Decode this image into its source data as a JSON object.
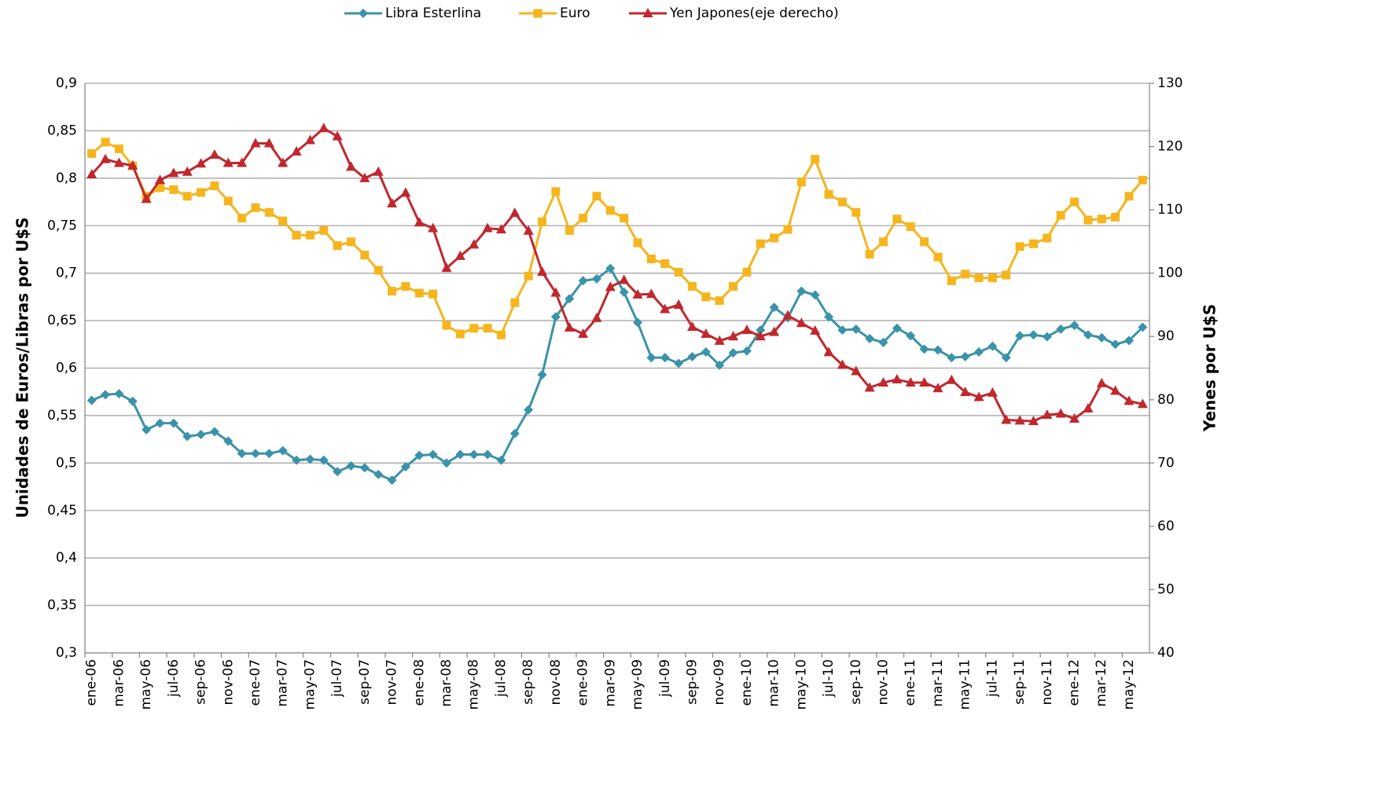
{
  "chart_data": {
    "type": "line",
    "categories": [
      "ene-06",
      null,
      "mar-06",
      null,
      "may-06",
      null,
      "jul-06",
      null,
      "sep-06",
      null,
      "nov-06",
      null,
      "ene-07",
      null,
      "mar-07",
      null,
      "may-07",
      null,
      "jul-07",
      null,
      "sep-07",
      null,
      "nov-07",
      null,
      "ene-08",
      null,
      "mar-08",
      null,
      "may-08",
      null,
      "jul-08",
      null,
      "sep-08",
      null,
      "nov-08",
      null,
      "ene-09",
      null,
      "mar-09",
      null,
      "may-09",
      null,
      "jul-09",
      null,
      "sep-09",
      null,
      "nov-09",
      null,
      "ene-10",
      null,
      "mar-10",
      null,
      "may-10",
      null,
      "jul-10",
      null,
      "sep-10",
      null,
      "nov-10",
      null,
      "ene-11",
      null,
      "mar-11",
      null,
      "may-11",
      null,
      "jul-11",
      null,
      "sep-11",
      null,
      "nov-11",
      null,
      "ene-12",
      null,
      "mar-12",
      null,
      "may-12",
      null
    ],
    "series": [
      {
        "name": "Libra Esterlina",
        "color": "#3a93a8",
        "marker": "diamond",
        "values": [
          0.566,
          0.572,
          0.573,
          0.565,
          0.535,
          0.542,
          0.542,
          0.528,
          0.53,
          0.533,
          0.523,
          0.51,
          0.51,
          0.51,
          0.513,
          0.503,
          0.504,
          0.503,
          0.491,
          0.497,
          0.495,
          0.488,
          0.482,
          0.496,
          0.508,
          0.509,
          0.5,
          0.509,
          0.509,
          0.509,
          0.503,
          0.531,
          0.556,
          0.593,
          0.654,
          0.673,
          0.692,
          0.694,
          0.705,
          0.68,
          0.648,
          0.611,
          0.611,
          0.605,
          0.612,
          0.617,
          0.603,
          0.616,
          0.618,
          0.64,
          0.664,
          0.653,
          0.681,
          0.677,
          0.654,
          0.64,
          0.641,
          0.631,
          0.627,
          0.642,
          0.634,
          0.62,
          0.619,
          0.611,
          0.612,
          0.617,
          0.623,
          0.611,
          0.634,
          0.635,
          0.633,
          0.641,
          0.645,
          0.635,
          0.632,
          0.625,
          0.629,
          0.643
        ]
      },
      {
        "name": "Euro",
        "color": "#f6b51d",
        "marker": "square",
        "values": [
          0.826,
          0.838,
          0.831,
          0.813,
          0.781,
          0.79,
          0.788,
          0.781,
          0.785,
          0.792,
          0.776,
          0.758,
          0.769,
          0.764,
          0.755,
          0.74,
          0.74,
          0.745,
          0.729,
          0.733,
          0.719,
          0.703,
          0.681,
          0.686,
          0.679,
          0.678,
          0.645,
          0.636,
          0.642,
          0.642,
          0.635,
          0.669,
          0.697,
          0.754,
          0.786,
          0.745,
          0.758,
          0.781,
          0.766,
          0.758,
          0.732,
          0.715,
          0.71,
          0.701,
          0.686,
          0.675,
          0.671,
          0.686,
          0.701,
          0.731,
          0.737,
          0.746,
          0.796,
          0.82,
          0.783,
          0.775,
          0.764,
          0.72,
          0.733,
          0.757,
          0.749,
          0.733,
          0.717,
          0.692,
          0.699,
          0.695,
          0.695,
          0.698,
          0.728,
          0.731,
          0.737,
          0.761,
          0.775,
          0.756,
          0.757,
          0.759,
          0.781,
          0.798
        ]
      },
      {
        "name": "Yen Japones(eje derecho)",
        "color": "#c1272d",
        "marker": "triangle",
        "axis": "y2",
        "values": [
          115.6,
          118.0,
          117.4,
          117.0,
          111.7,
          114.7,
          115.8,
          116.0,
          117.3,
          118.7,
          117.4,
          117.4,
          120.5,
          120.5,
          117.4,
          119.2,
          121.0,
          122.9,
          121.6,
          116.8,
          115.0,
          116.0,
          111.0,
          112.7,
          108.0,
          107.1,
          100.8,
          102.7,
          104.5,
          107.1,
          106.9,
          109.5,
          106.7,
          100.2,
          96.9,
          91.4,
          90.4,
          92.9,
          97.8,
          98.9,
          96.6,
          96.7,
          94.3,
          95.0,
          91.5,
          90.4,
          89.3,
          90.0,
          91.0,
          90.0,
          90.7,
          93.3,
          92.1,
          90.9,
          87.5,
          85.5,
          84.5,
          81.9,
          82.7,
          83.2,
          82.7,
          82.7,
          81.8,
          83.1,
          81.2,
          80.4,
          81.1,
          76.8,
          76.7,
          76.6,
          77.6,
          77.8,
          77.0,
          78.6,
          82.6,
          81.4,
          79.8,
          79.3
        ]
      }
    ],
    "ylabel": "Unidades de Euros/Libras por U$S",
    "y2label": "Yenes por U$S",
    "ylim": [
      0.3,
      0.9
    ],
    "yticks": [
      {
        "value": 0.3,
        "label": "0,3"
      },
      {
        "value": 0.35,
        "label": "0,35"
      },
      {
        "value": 0.4,
        "label": "0,4"
      },
      {
        "value": 0.45,
        "label": "0,45"
      },
      {
        "value": 0.5,
        "label": "0,5"
      },
      {
        "value": 0.55,
        "label": "0,55"
      },
      {
        "value": 0.6,
        "label": "0,6"
      },
      {
        "value": 0.65,
        "label": "0,65"
      },
      {
        "value": 0.7,
        "label": "0,7"
      },
      {
        "value": 0.75,
        "label": "0,75"
      },
      {
        "value": 0.8,
        "label": "0,8"
      },
      {
        "value": 0.85,
        "label": "0,85"
      },
      {
        "value": 0.9,
        "label": "0,9"
      }
    ],
    "y2lim": [
      40,
      130
    ],
    "y2ticks": [
      40,
      50,
      60,
      70,
      80,
      90,
      100,
      110,
      120,
      130
    ],
    "grid": true,
    "legend": "top"
  }
}
